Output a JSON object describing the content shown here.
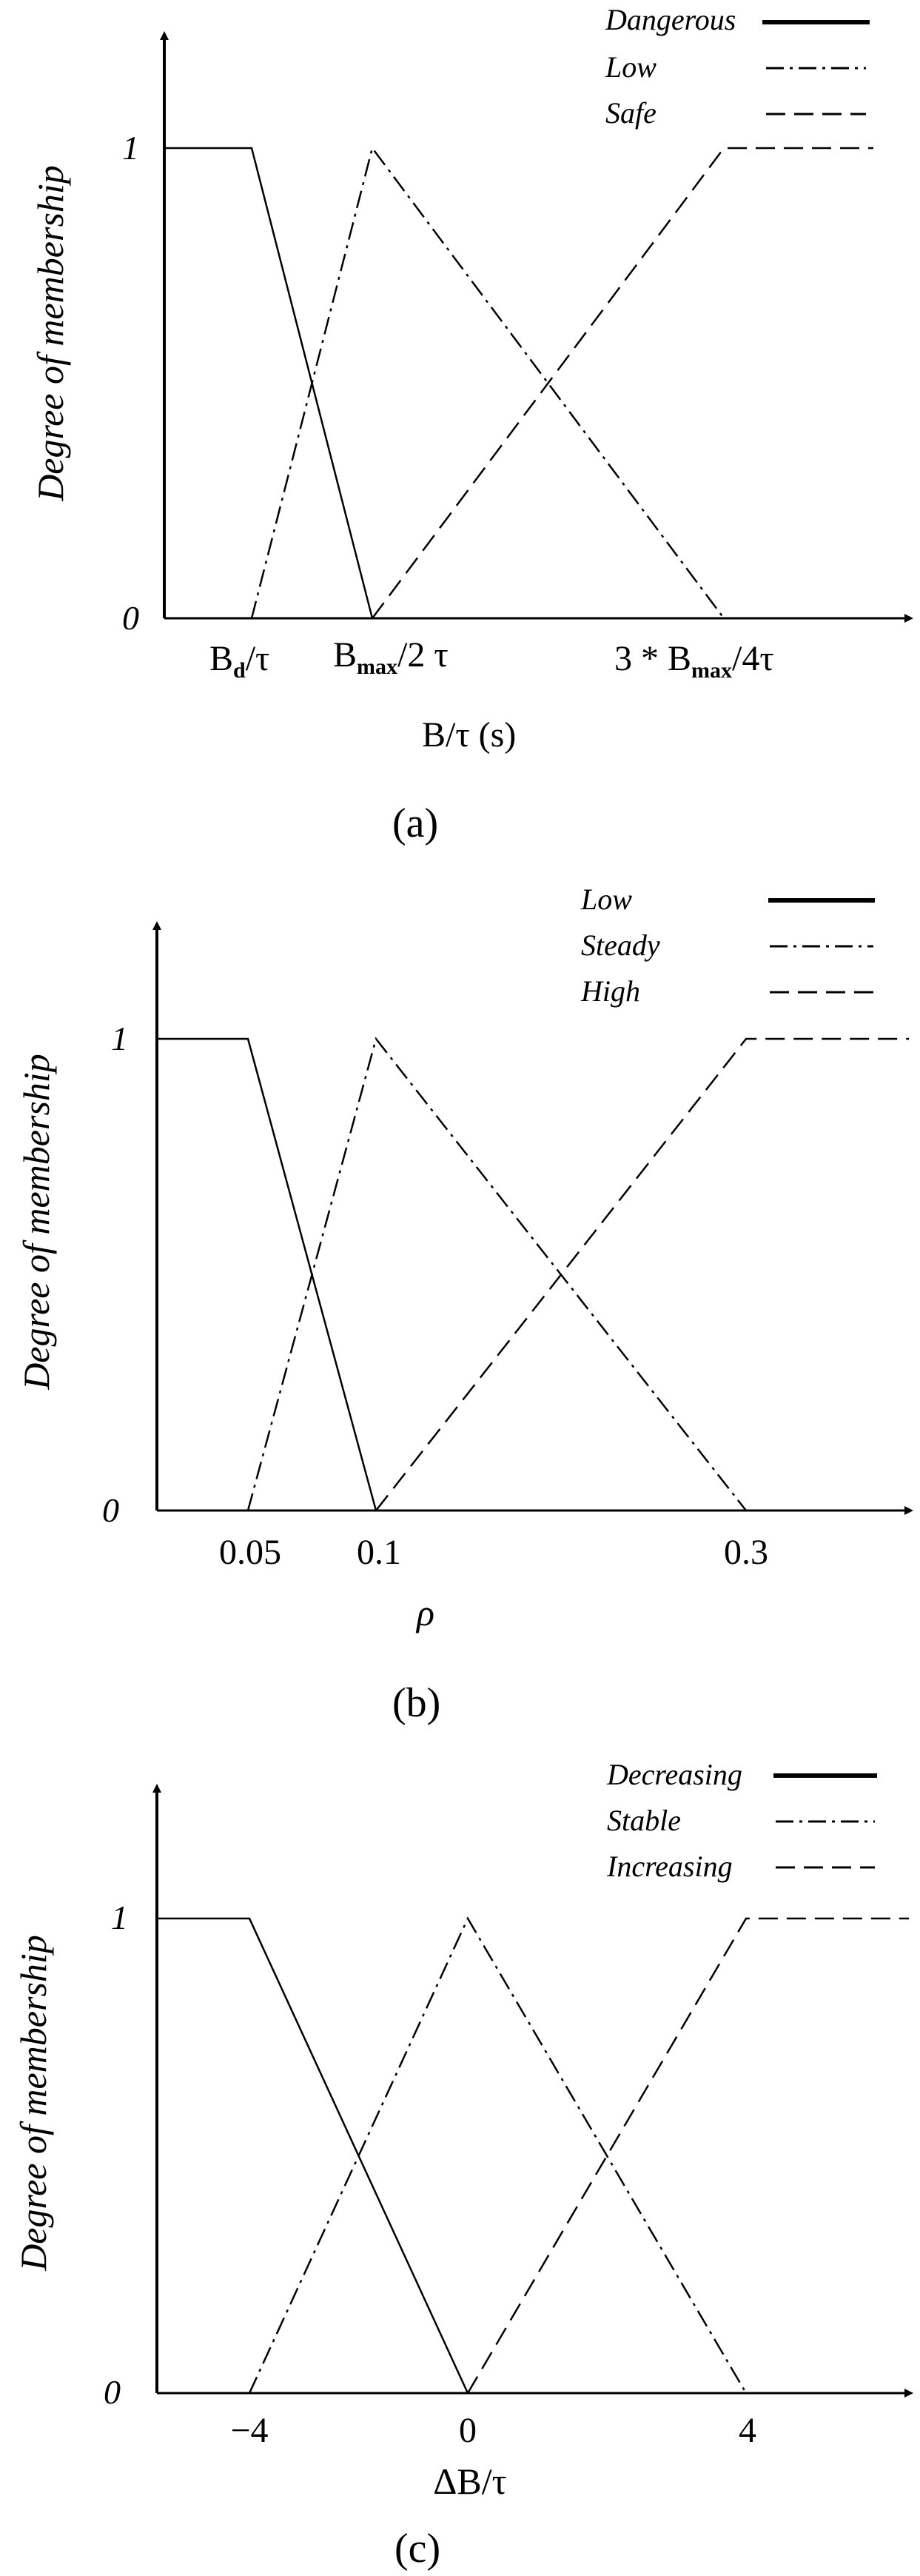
{
  "chart_data": [
    {
      "type": "line",
      "panel_label": "(a)",
      "ylabel": "Degree of membership",
      "xlabel": "B/τ (s)",
      "y_ticks": [
        "0",
        "1"
      ],
      "x_ticks": [
        "B_d/τ",
        "B_max/2 τ",
        "3 * B_max/4τ"
      ],
      "legend_position": "top-right",
      "series": [
        {
          "name": "Dangerous",
          "style": "solid",
          "x": [
            0,
            1,
            2
          ],
          "y": [
            1,
            1,
            0
          ]
        },
        {
          "name": "Low",
          "style": "dash-dot",
          "x": [
            1,
            2,
            3
          ],
          "y": [
            0,
            1,
            0
          ]
        },
        {
          "name": "Safe",
          "style": "dashed",
          "x": [
            2,
            3,
            3.5
          ],
          "y": [
            0,
            1,
            1
          ]
        }
      ]
    },
    {
      "type": "line",
      "panel_label": "(b)",
      "ylabel": "Degree of membership",
      "xlabel": "ρ",
      "y_ticks": [
        "0",
        "1"
      ],
      "x_ticks": [
        "0.05",
        "0.1",
        "0.3"
      ],
      "legend_position": "top-right",
      "series": [
        {
          "name": "Low",
          "style": "solid",
          "x": [
            0,
            0.05,
            0.1
          ],
          "y": [
            1,
            1,
            0
          ]
        },
        {
          "name": "Steady",
          "style": "dash-dot",
          "x": [
            0.05,
            0.1,
            0.3
          ],
          "y": [
            0,
            1,
            0
          ]
        },
        {
          "name": "High",
          "style": "dashed",
          "x": [
            0.1,
            0.3,
            0.4
          ],
          "y": [
            0,
            1,
            1
          ]
        }
      ]
    },
    {
      "type": "line",
      "panel_label": "(c)",
      "ylabel": "Degree of membership",
      "xlabel": "ΔB/τ",
      "y_ticks": [
        "0",
        "1"
      ],
      "x_ticks": [
        "−4",
        "0",
        "4"
      ],
      "legend_position": "top-right",
      "series": [
        {
          "name": "Decreasing",
          "style": "solid",
          "x": [
            -6,
            -4,
            0
          ],
          "y": [
            1,
            1,
            0
          ]
        },
        {
          "name": "Stable",
          "style": "dash-dot",
          "x": [
            -4,
            0,
            4
          ],
          "y": [
            0,
            1,
            0
          ]
        },
        {
          "name": "Increasing",
          "style": "dashed",
          "x": [
            0,
            4,
            6
          ],
          "y": [
            0,
            1,
            1
          ]
        }
      ]
    }
  ]
}
